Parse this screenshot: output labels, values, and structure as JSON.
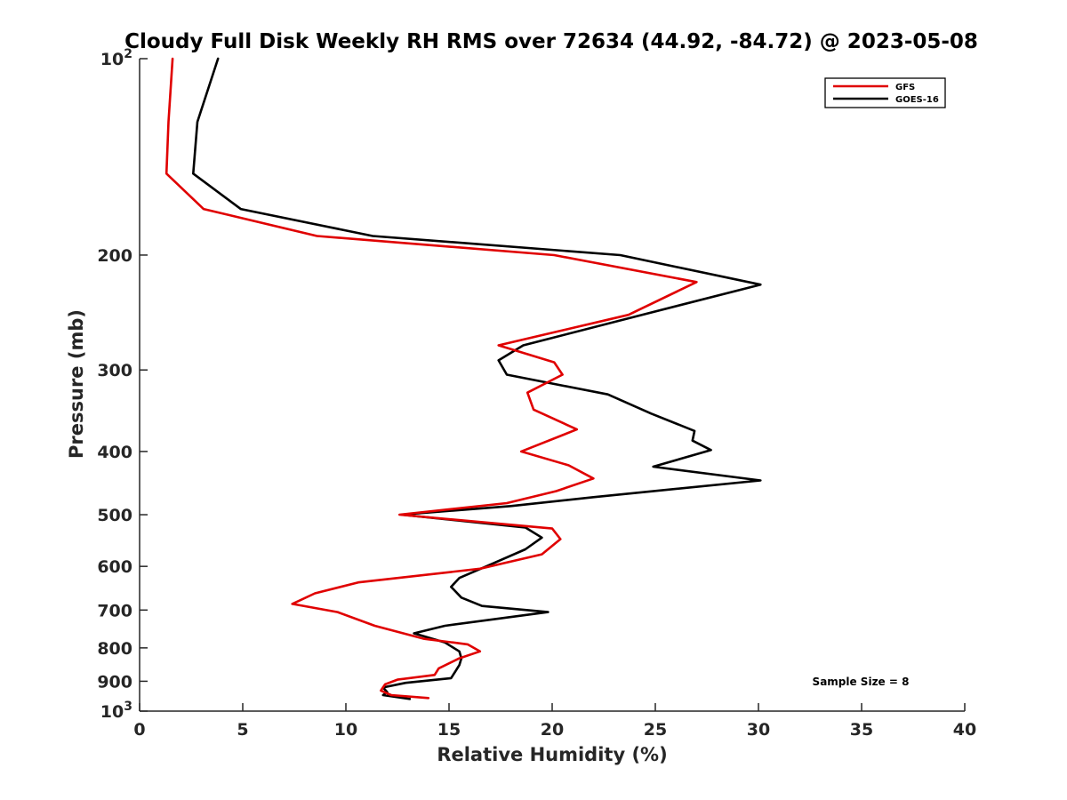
{
  "chart_data": {
    "type": "line",
    "title": "Cloudy Full Disk Weekly RH RMS over 72634 (44.92, -84.72) @ 2023-05-08",
    "xlabel": "Relative Humidity (%)",
    "ylabel": "Pressure (mb)",
    "xlim": [
      0,
      40
    ],
    "ylim": [
      100,
      1000
    ],
    "yscale": "log",
    "y_reversed": true,
    "x_ticks": [
      0,
      5,
      10,
      15,
      20,
      25,
      30,
      35,
      40
    ],
    "x_tick_labels": [
      "0",
      "5",
      "10",
      "15",
      "20",
      "25",
      "30",
      "35",
      "40"
    ],
    "y_ticks": [
      100,
      200,
      300,
      400,
      500,
      600,
      700,
      800,
      900,
      1000
    ],
    "y_tick_labels": [
      {
        "base": "10",
        "exp": "2"
      },
      {
        "text": "200"
      },
      {
        "text": "300"
      },
      {
        "text": "400"
      },
      {
        "text": "500"
      },
      {
        "text": "600"
      },
      {
        "text": "700"
      },
      {
        "text": "800"
      },
      {
        "text": "900"
      },
      {
        "base": "10",
        "exp": "3"
      }
    ],
    "grid": false,
    "legend_position": "top-right",
    "series": [
      {
        "name": "GFS",
        "color": "#e00000",
        "points": [
          [
            1.6,
            100
          ],
          [
            1.4,
            125
          ],
          [
            1.3,
            150
          ],
          [
            3.1,
            170
          ],
          [
            8.6,
            187
          ],
          [
            20.1,
            200
          ],
          [
            27.0,
            220
          ],
          [
            23.7,
            247
          ],
          [
            17.4,
            275
          ],
          [
            20.1,
            292
          ],
          [
            20.5,
            305
          ],
          [
            18.8,
            325
          ],
          [
            19.1,
            345
          ],
          [
            21.2,
            370
          ],
          [
            18.5,
            400
          ],
          [
            20.8,
            420
          ],
          [
            22.0,
            440
          ],
          [
            20.2,
            460
          ],
          [
            17.8,
            480
          ],
          [
            12.6,
            500
          ],
          [
            20.0,
            525
          ],
          [
            20.4,
            545
          ],
          [
            19.5,
            575
          ],
          [
            16.5,
            605
          ],
          [
            10.6,
            635
          ],
          [
            8.5,
            660
          ],
          [
            7.4,
            685
          ],
          [
            9.6,
            705
          ],
          [
            11.4,
            740
          ],
          [
            13.8,
            775
          ],
          [
            15.9,
            790
          ],
          [
            16.5,
            810
          ],
          [
            15.5,
            830
          ],
          [
            14.5,
            860
          ],
          [
            14.3,
            880
          ],
          [
            12.5,
            895
          ],
          [
            11.9,
            910
          ],
          [
            11.7,
            930
          ],
          [
            12.2,
            945
          ],
          [
            14.0,
            955
          ]
        ]
      },
      {
        "name": "GOES-16",
        "color": "#000000",
        "points": [
          [
            3.8,
            100
          ],
          [
            2.8,
            125
          ],
          [
            2.6,
            150
          ],
          [
            4.9,
            170
          ],
          [
            11.3,
            187
          ],
          [
            23.3,
            200
          ],
          [
            30.1,
            222
          ],
          [
            23.7,
            250
          ],
          [
            18.6,
            275
          ],
          [
            17.4,
            290
          ],
          [
            17.8,
            305
          ],
          [
            22.7,
            327
          ],
          [
            24.8,
            350
          ],
          [
            26.9,
            372
          ],
          [
            26.8,
            385
          ],
          [
            27.7,
            398
          ],
          [
            24.9,
            422
          ],
          [
            30.1,
            443
          ],
          [
            22.0,
            470
          ],
          [
            18.0,
            485
          ],
          [
            12.7,
            500
          ],
          [
            18.7,
            523
          ],
          [
            19.5,
            542
          ],
          [
            18.7,
            565
          ],
          [
            16.8,
            600
          ],
          [
            15.5,
            625
          ],
          [
            15.1,
            645
          ],
          [
            15.6,
            670
          ],
          [
            16.6,
            690
          ],
          [
            19.8,
            705
          ],
          [
            14.8,
            740
          ],
          [
            13.3,
            760
          ],
          [
            14.8,
            785
          ],
          [
            15.5,
            810
          ],
          [
            15.6,
            830
          ],
          [
            15.5,
            850
          ],
          [
            15.3,
            870
          ],
          [
            15.1,
            890
          ],
          [
            12.9,
            905
          ],
          [
            11.8,
            920
          ],
          [
            12.0,
            935
          ],
          [
            11.8,
            945
          ],
          [
            13.1,
            958
          ]
        ]
      }
    ],
    "annotation": "Sample Size = 8"
  }
}
